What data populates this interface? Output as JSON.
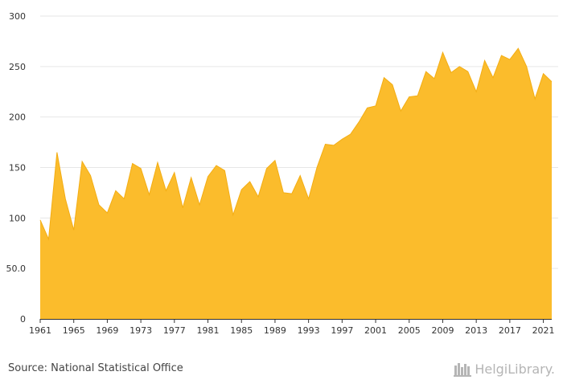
{
  "chart_data": {
    "type": "area",
    "color": "#fbbc2c",
    "line_color": "#f3ad14",
    "grid": true,
    "ylim": [
      0,
      300
    ],
    "yticks": [
      0,
      50,
      100,
      150,
      200,
      250,
      300
    ],
    "ytick_labels": [
      "0",
      "50.0",
      "100",
      "150",
      "200",
      "250",
      "300"
    ],
    "xlim": [
      1961,
      2022
    ],
    "xticks": [
      1961,
      1965,
      1969,
      1973,
      1977,
      1981,
      1985,
      1989,
      1993,
      1997,
      2001,
      2005,
      2009,
      2013,
      2017,
      2021
    ],
    "xtick_labels": [
      "1961",
      "1965",
      "1969",
      "1973",
      "1977",
      "1981",
      "1985",
      "1989",
      "1993",
      "1997",
      "2001",
      "2005",
      "2009",
      "2013",
      "2017",
      "2021"
    ],
    "x": [
      1961,
      1962,
      1963,
      1964,
      1965,
      1966,
      1967,
      1968,
      1969,
      1970,
      1971,
      1972,
      1973,
      1974,
      1975,
      1976,
      1977,
      1978,
      1979,
      1980,
      1981,
      1982,
      1983,
      1984,
      1985,
      1986,
      1987,
      1988,
      1989,
      1990,
      1991,
      1992,
      1993,
      1994,
      1995,
      1996,
      1997,
      1998,
      1999,
      2000,
      2001,
      2002,
      2003,
      2004,
      2005,
      2006,
      2007,
      2008,
      2009,
      2010,
      2011,
      2012,
      2013,
      2014,
      2015,
      2016,
      2017,
      2018,
      2019,
      2020,
      2021,
      2022
    ],
    "values": [
      98,
      79,
      165,
      119,
      88,
      156,
      142,
      113,
      105,
      127,
      119,
      154,
      149,
      123,
      155,
      127,
      145,
      110,
      140,
      113,
      141,
      152,
      147,
      103,
      128,
      136,
      121,
      149,
      157,
      125,
      124,
      142,
      119,
      150,
      173,
      172,
      178,
      183,
      195,
      209,
      211,
      239,
      232,
      206,
      220,
      221,
      245,
      238,
      264,
      244,
      250,
      245,
      225,
      256,
      239,
      261,
      257,
      268,
      250,
      218,
      243,
      235
    ]
  },
  "footer": {
    "source": "Source: National Statistical Office",
    "logo_text": "HelgiLibrary."
  }
}
